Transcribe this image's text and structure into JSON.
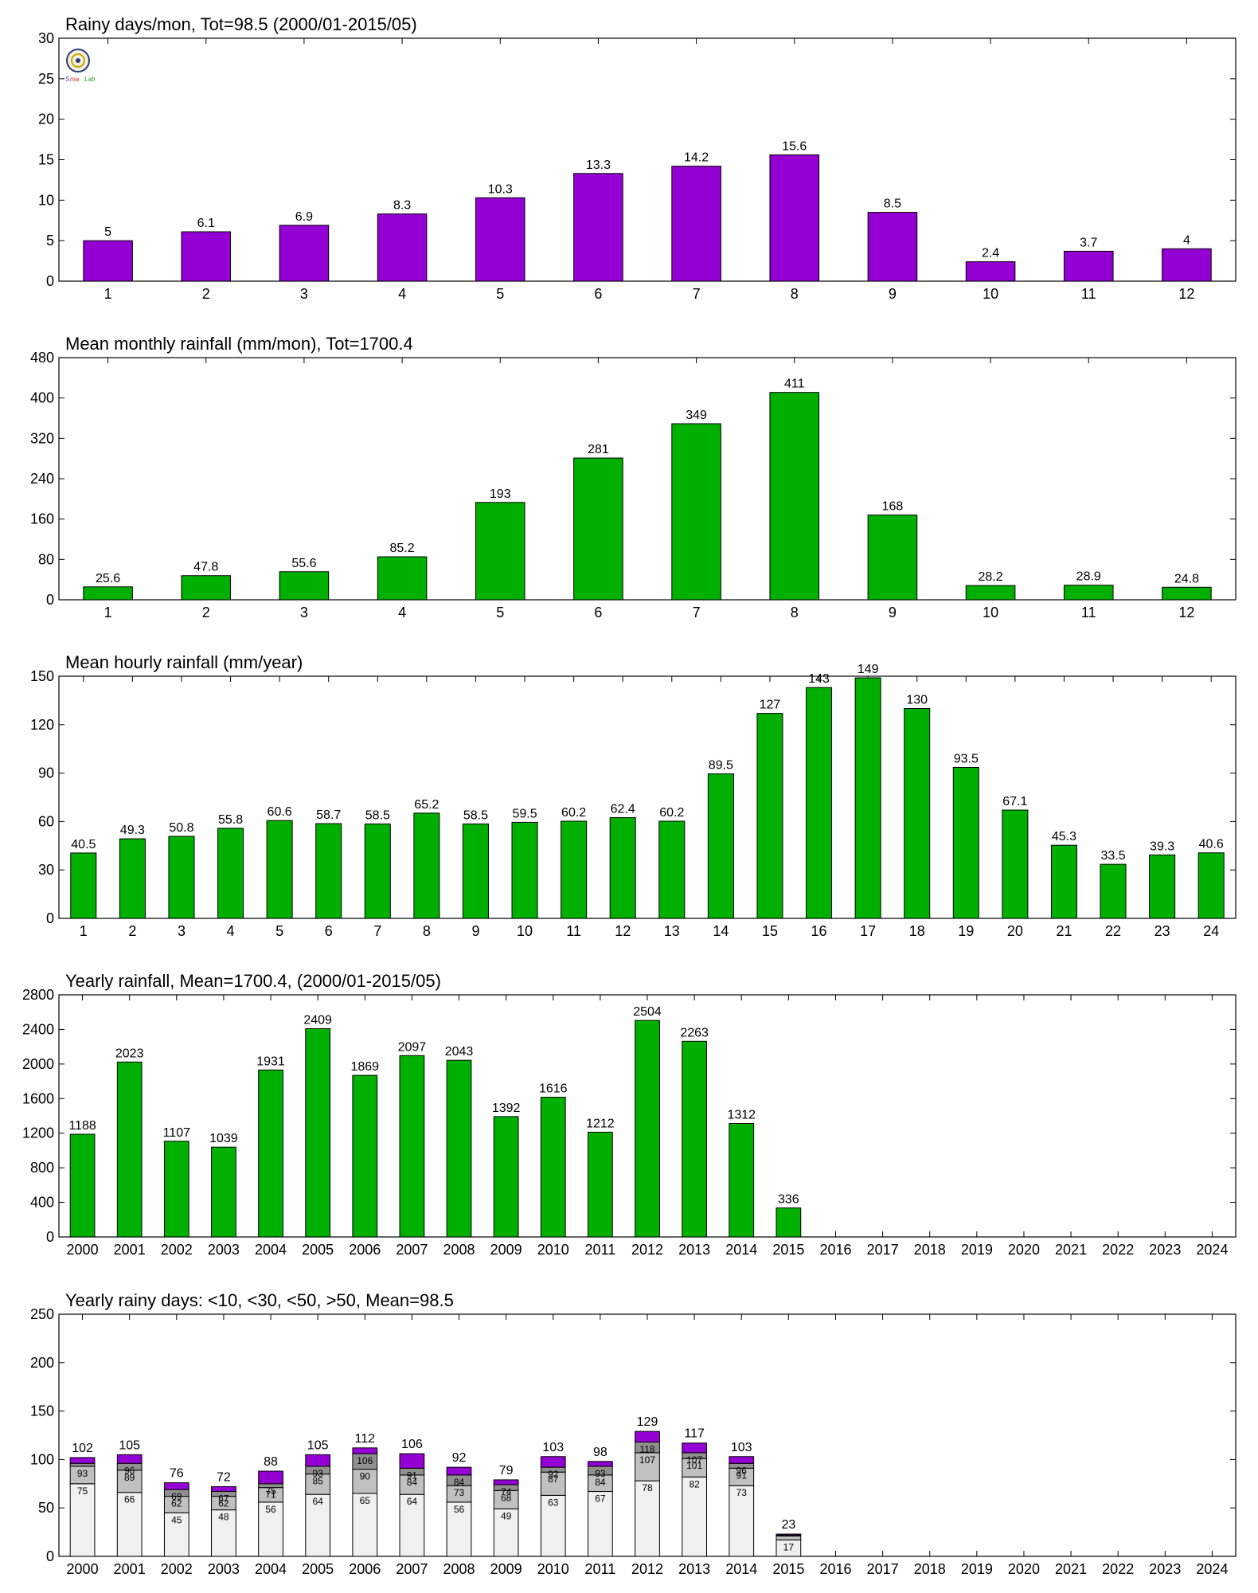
{
  "chart_data": [
    {
      "type": "bar",
      "title": "Rainy days/mon, Tot=98.5 (2000/01-2015/05)",
      "categories": [
        "1",
        "2",
        "3",
        "4",
        "5",
        "6",
        "7",
        "8",
        "9",
        "10",
        "11",
        "12"
      ],
      "values": [
        5,
        6.1,
        6.9,
        8.3,
        10.3,
        13.3,
        14.2,
        15.6,
        8.5,
        2.4,
        3.7,
        4
      ],
      "value_labels": [
        "5",
        "6.1",
        "6.9",
        "8.3",
        "10.3",
        "13.3",
        "14.2",
        "15.6",
        "8.5",
        "2.4",
        "3.7",
        "4"
      ],
      "ylim": [
        0,
        30
      ],
      "yticks": [
        "0",
        "5",
        "10",
        "15",
        "20",
        "25",
        "30"
      ],
      "color": "#9400D3",
      "grid": false
    },
    {
      "type": "bar",
      "title": "Mean monthly rainfall (mm/mon), Tot=1700.4",
      "categories": [
        "1",
        "2",
        "3",
        "4",
        "5",
        "6",
        "7",
        "8",
        "9",
        "10",
        "11",
        "12"
      ],
      "values": [
        25.6,
        47.8,
        55.6,
        85.2,
        193,
        281,
        349,
        411,
        168,
        28.2,
        28.9,
        24.8
      ],
      "value_labels": [
        "25.6",
        "47.8",
        "55.6",
        "85.2",
        "193",
        "281",
        "349",
        "411",
        "168",
        "28.2",
        "28.9",
        "24.8"
      ],
      "ylim": [
        0,
        480
      ],
      "yticks": [
        "0",
        "80",
        "160",
        "240",
        "320",
        "400",
        "480"
      ],
      "color": "#00B000",
      "grid": false
    },
    {
      "type": "bar",
      "title": "Mean hourly rainfall (mm/year)",
      "categories": [
        "1",
        "2",
        "3",
        "4",
        "5",
        "6",
        "7",
        "8",
        "9",
        "10",
        "11",
        "12",
        "13",
        "14",
        "15",
        "16",
        "17",
        "18",
        "19",
        "20",
        "21",
        "22",
        "23",
        "24"
      ],
      "values": [
        40.5,
        49.3,
        50.8,
        55.8,
        60.6,
        58.7,
        58.5,
        65.2,
        58.5,
        59.5,
        60.2,
        62.4,
        60.2,
        89.5,
        127,
        143,
        149,
        130,
        93.5,
        67.1,
        45.3,
        33.5,
        39.3,
        40.6
      ],
      "value_labels": [
        "40.5",
        "49.3",
        "50.8",
        "55.8",
        "60.6",
        "58.7",
        "58.5",
        "65.2",
        "58.5",
        "59.5",
        "60.2",
        "62.4",
        "60.2",
        "89.5",
        "127",
        "143",
        "149",
        "130",
        "93.5",
        "67.1",
        "45.3",
        "33.5",
        "39.3",
        "40.6"
      ],
      "ylim": [
        0,
        150
      ],
      "yticks": [
        "0",
        "30",
        "60",
        "90",
        "120",
        "150"
      ],
      "color": "#00B000",
      "grid": false
    },
    {
      "type": "bar",
      "title": "Yearly rainfall, Mean=1700.4, (2000/01-2015/05)",
      "categories": [
        "2000",
        "2001",
        "2002",
        "2003",
        "2004",
        "2005",
        "2006",
        "2007",
        "2008",
        "2009",
        "2010",
        "2011",
        "2012",
        "2013",
        "2014",
        "2015",
        "2016",
        "2017",
        "2018",
        "2019",
        "2020",
        "2021",
        "2022",
        "2023",
        "2024"
      ],
      "values": [
        1188,
        2023,
        1107,
        1039,
        1931,
        2409,
        1869,
        2097,
        2043,
        1392,
        1616,
        1212,
        2504,
        2263,
        1312,
        336,
        null,
        null,
        null,
        null,
        null,
        null,
        null,
        null,
        null
      ],
      "value_labels": [
        "1188",
        "2023",
        "1107",
        "1039",
        "1931",
        "2409",
        "1869",
        "2097",
        "2043",
        "1392",
        "1616",
        "1212",
        "2504",
        "2263",
        "1312",
        "336",
        "",
        "",
        "",
        "",
        "",
        "",
        "",
        "",
        ""
      ],
      "ylim": [
        0,
        2800
      ],
      "yticks": [
        "0",
        "400",
        "800",
        "1200",
        "1600",
        "2000",
        "2400",
        "2800"
      ],
      "color": "#00B000",
      "grid": false
    },
    {
      "type": "bar",
      "stacked": true,
      "title": "Yearly rainy days: <10, <30, <50, >50, Mean=98.5",
      "categories": [
        "2000",
        "2001",
        "2002",
        "2003",
        "2004",
        "2005",
        "2006",
        "2007",
        "2008",
        "2009",
        "2010",
        "2011",
        "2012",
        "2013",
        "2014",
        "2015",
        "2016",
        "2017",
        "2018",
        "2019",
        "2020",
        "2021",
        "2022",
        "2023",
        "2024"
      ],
      "cumulative": [
        [
          75,
          66,
          45,
          48,
          56,
          64,
          65,
          64,
          56,
          49,
          63,
          67,
          78,
          82,
          73,
          17,
          null,
          null,
          null,
          null,
          null,
          null,
          null,
          null,
          null
        ],
        [
          93,
          89,
          62,
          62,
          71,
          85,
          90,
          84,
          73,
          68,
          87,
          84,
          107,
          101,
          91,
          21,
          null,
          null,
          null,
          null,
          null,
          null,
          null,
          null,
          null
        ],
        [
          96,
          96,
          69,
          67,
          75,
          93,
          106,
          91,
          84,
          74,
          92,
          93,
          118,
          107,
          96,
          22,
          null,
          null,
          null,
          null,
          null,
          null,
          null,
          null,
          null
        ],
        [
          102,
          105,
          76,
          72,
          88,
          105,
          112,
          106,
          92,
          79,
          103,
          98,
          129,
          117,
          103,
          23,
          null,
          null,
          null,
          null,
          null,
          null,
          null,
          null,
          null
        ]
      ],
      "segment_labels": [
        [
          "75",
          "66",
          "45",
          "48",
          "56",
          "64",
          "65",
          "64",
          "56",
          "49",
          "63",
          "67",
          "78",
          "82",
          "73",
          "17"
        ],
        [
          "93",
          "89",
          "62",
          "62",
          "71",
          "85",
          "90",
          "84",
          "73",
          "68",
          "87",
          "84",
          "107",
          "101",
          "91",
          ""
        ],
        [
          "",
          "96",
          "69",
          "67",
          "75",
          "93",
          "106",
          "91",
          "84",
          "74",
          "92",
          "93",
          "118",
          "107",
          "96",
          ""
        ]
      ],
      "total_labels": [
        "102",
        "105",
        "76",
        "72",
        "88",
        "105",
        "112",
        "106",
        "92",
        "79",
        "103",
        "98",
        "129",
        "117",
        "103",
        "23",
        "",
        "",
        "",
        "",
        "",
        "",
        "",
        "",
        ""
      ],
      "colors": [
        "#F0F0F0",
        "#C0C0C0",
        "#909090",
        "#9400D3"
      ],
      "ylim": [
        0,
        250
      ],
      "yticks": [
        "0",
        "50",
        "100",
        "150",
        "200",
        "250"
      ],
      "grid": false
    }
  ]
}
